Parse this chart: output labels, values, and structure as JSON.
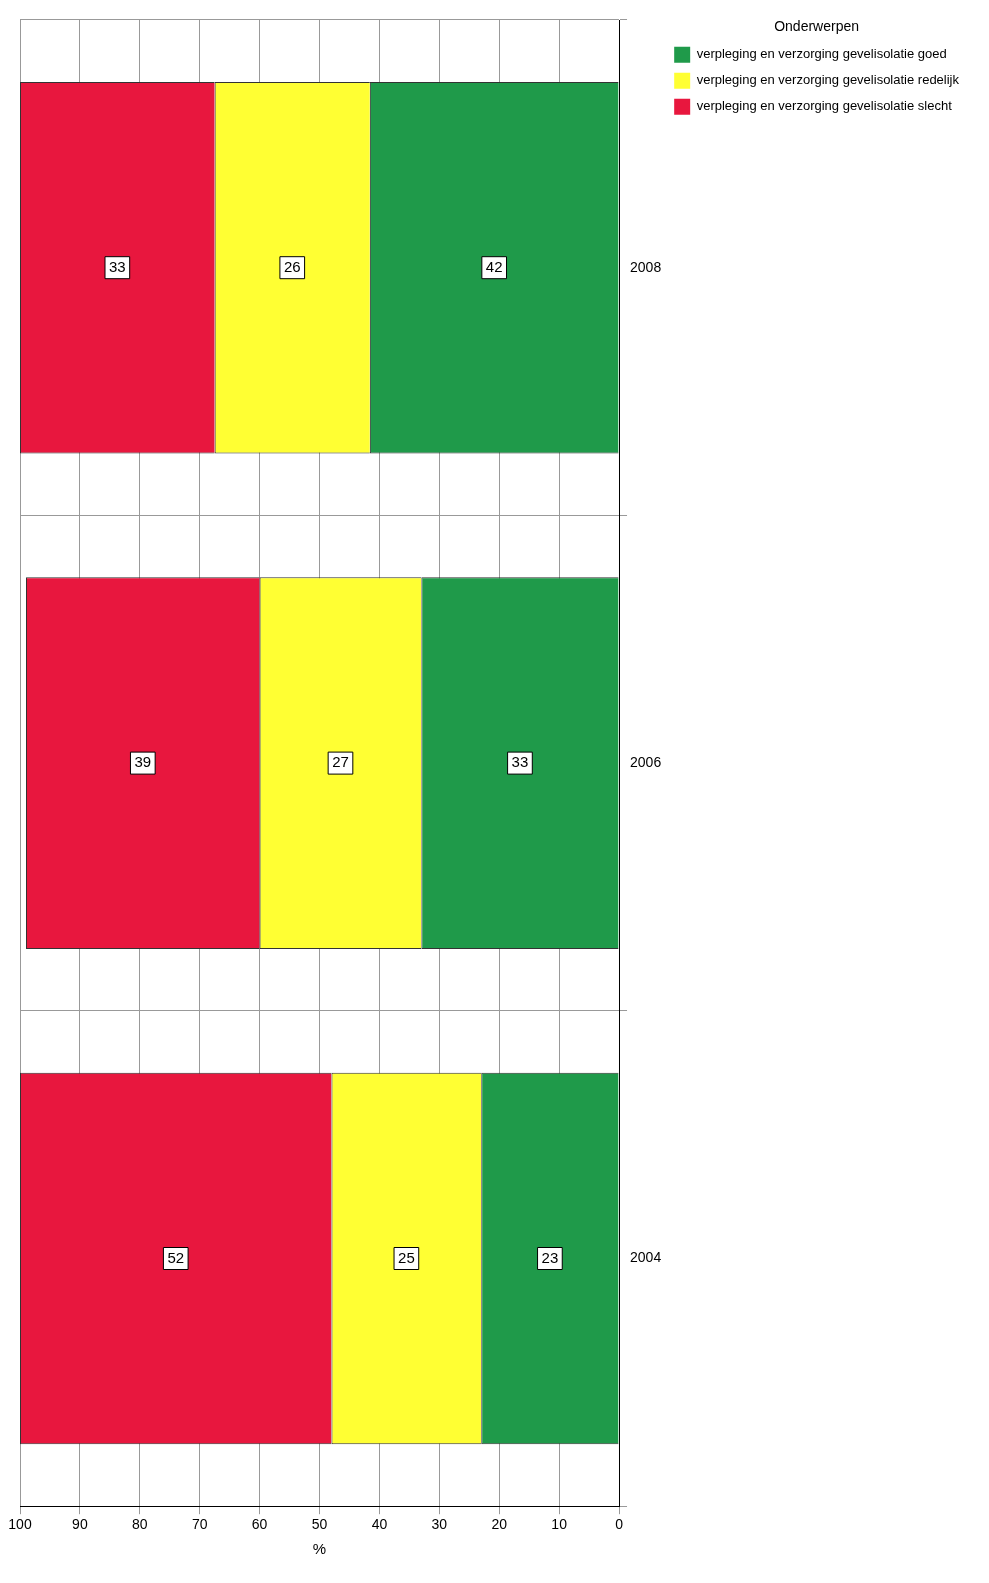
{
  "chart_data": {
    "type": "bar",
    "orientation": "horizontal",
    "stacked": true,
    "categories": [
      "2008",
      "2006",
      "2004"
    ],
    "series": [
      {
        "name": "verpleging en verzorging gevelisolatie goed",
        "color": "#1f9a4a",
        "values": [
          41.6,
          33,
          23
        ],
        "value_labels": [
          "42",
          "33",
          "23"
        ]
      },
      {
        "name": "verpleging en verzorging gevelisolatie redelijk",
        "color": "#ffff33",
        "values": [
          25.9,
          27,
          25
        ],
        "value_labels": [
          "26",
          "27",
          "25"
        ]
      },
      {
        "name": "verpleging en verzorging gevelisolatie slecht",
        "color": "#e8173e",
        "values": [
          32.5,
          39,
          52
        ],
        "value_labels": [
          "33",
          "39",
          "52"
        ]
      }
    ],
    "xlim": [
      100,
      0
    ],
    "xticks": [
      100,
      90,
      80,
      70,
      60,
      50,
      40,
      30,
      20,
      10,
      0
    ],
    "xlabel": "%",
    "legend_title": "Onderwerpen",
    "legend": "top right",
    "grid": true
  }
}
